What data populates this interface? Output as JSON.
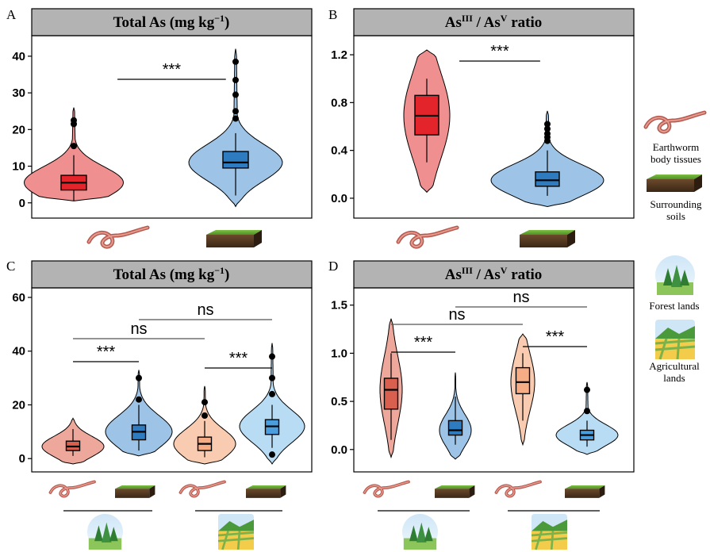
{
  "panel_labels": [
    "A",
    "B",
    "C",
    "D"
  ],
  "strips": {
    "A": {
      "main": "Total As (mg kg",
      "sup": "−1",
      "tail": ")"
    },
    "B": {
      "p1": "As",
      "s1": "III",
      "p2": " / As",
      "s2": "V",
      "p3": " ratio"
    },
    "C": {
      "main": "Total As (mg kg",
      "sup": "−1",
      "tail": ")"
    },
    "D": {
      "p1": "As",
      "s1": "III",
      "p2": " / As",
      "s2": "V",
      "p3": " ratio"
    }
  },
  "legend": {
    "earthworm": [
      "Earthworm",
      "body tissues"
    ],
    "soil": [
      "Surrounding",
      "soils"
    ],
    "forest": [
      "Forest lands"
    ],
    "agri": [
      "Agricultural",
      "lands"
    ]
  },
  "colors": {
    "earthworm_red": "#e3242b",
    "soil_blue": "#2f7bbf",
    "violin_red_fill": "#ef8f8f",
    "violin_blue_fill": "#9dc3e6",
    "box_salmon": "#d9604f",
    "box_peach": "#f6ad86",
    "box_blue2": "#4a9ede",
    "violin_salmon_fill": "#eda79b",
    "violin_peach_fill": "#f9cbb0",
    "violin_lightblue_fill": "#b8dcf4",
    "strip_bg": "#b3b3b3"
  },
  "chart_data": [
    {
      "panel": "A",
      "type": "violin",
      "title": "Total As (mg kg−1)",
      "ylim": [
        -2,
        43
      ],
      "yticks": [
        "0",
        "10",
        "20",
        "30",
        "40"
      ],
      "categories": [
        "Earthworm body tissues",
        "Surrounding soils"
      ],
      "groups": [
        {
          "q1": 3.5,
          "median": 5.5,
          "q3": 7.5,
          "whisker_low": 0.5,
          "whisker_high": 13,
          "outliers": [
            15.5,
            21.5,
            22.5
          ],
          "violin_range": [
            0.5,
            26
          ],
          "color": "red"
        },
        {
          "q1": 9.5,
          "median": 11,
          "q3": 14,
          "whisker_low": 2,
          "whisker_high": 19,
          "outliers": [
            23,
            25,
            29.5,
            33.5,
            38.5
          ],
          "violin_range": [
            -1,
            42
          ],
          "color": "blue"
        }
      ],
      "significance": [
        {
          "groups": [
            1,
            2
          ],
          "label": "***"
        }
      ]
    },
    {
      "panel": "B",
      "type": "violin",
      "title": "AsIII / AsV ratio",
      "ylim": [
        -0.1,
        1.28
      ],
      "yticks": [
        "0.0",
        "0.4",
        "0.8",
        "1.2"
      ],
      "categories": [
        "Earthworm body tissues",
        "Surrounding soils"
      ],
      "groups": [
        {
          "q1": 0.53,
          "median": 0.69,
          "q3": 0.86,
          "whisker_low": 0.3,
          "whisker_high": 1.0,
          "outliers": [],
          "violin_range": [
            0.05,
            1.24
          ],
          "color": "red"
        },
        {
          "q1": 0.1,
          "median": 0.15,
          "q3": 0.22,
          "whisker_low": 0.02,
          "whisker_high": 0.4,
          "outliers": [
            0.48,
            0.51,
            0.54,
            0.58,
            0.62
          ],
          "violin_range": [
            -0.07,
            0.73
          ],
          "color": "blue"
        }
      ],
      "significance": [
        {
          "groups": [
            1,
            2
          ],
          "label": "***"
        }
      ]
    },
    {
      "panel": "C",
      "type": "violin",
      "title": "Total As (mg kg−1)",
      "ylim": [
        -2,
        60
      ],
      "yticks": [
        "0",
        "20",
        "40",
        "60"
      ],
      "categories": [
        "Forest lands - Earthworm body tissues",
        "Forest lands - Surrounding soils",
        "Agricultural lands - Earthworm body tissues",
        "Agricultural lands - Surrounding soils"
      ],
      "groups": [
        {
          "q1": 3,
          "median": 4.5,
          "q3": 6.5,
          "whisker_low": 1,
          "whisker_high": 11,
          "outliers": [],
          "violin_range": [
            -2,
            15
          ],
          "color": "salmon"
        },
        {
          "q1": 7,
          "median": 10,
          "q3": 12.5,
          "whisker_low": 3,
          "whisker_high": 20,
          "outliers": [
            22,
            30
          ],
          "violin_range": [
            1,
            33
          ],
          "color": "blue"
        },
        {
          "q1": 3,
          "median": 5.5,
          "q3": 8,
          "whisker_low": 0.5,
          "whisker_high": 14,
          "outliers": [
            16,
            21
          ],
          "violin_range": [
            -2,
            27
          ],
          "color": "peach"
        },
        {
          "q1": 9,
          "median": 12,
          "q3": 14.5,
          "whisker_low": 4,
          "whisker_high": 20,
          "outliers": [
            1.5,
            24,
            30,
            38
          ],
          "violin_range": [
            -2,
            43
          ],
          "color": "lightblue"
        }
      ],
      "significance": [
        {
          "groups": [
            1,
            2
          ],
          "label": "***"
        },
        {
          "groups": [
            3,
            4
          ],
          "label": "***"
        },
        {
          "groups": [
            1,
            3
          ],
          "label": "ns"
        },
        {
          "groups": [
            2,
            4
          ],
          "label": "ns"
        }
      ]
    },
    {
      "panel": "D",
      "type": "violin",
      "title": "AsIII / AsV ratio",
      "ylim": [
        -0.15,
        1.58
      ],
      "yticks": [
        "0.0",
        "0.5",
        "1.0",
        "1.5"
      ],
      "categories": [
        "Forest lands - Earthworm body tissues",
        "Forest lands - Surrounding soils",
        "Agricultural lands - Earthworm body tissues",
        "Agricultural lands - Surrounding soils"
      ],
      "groups": [
        {
          "q1": 0.42,
          "median": 0.62,
          "q3": 0.74,
          "whisker_low": 0.1,
          "whisker_high": 1.0,
          "outliers": [],
          "violin_range": [
            -0.08,
            1.36
          ],
          "color": "salmon"
        },
        {
          "q1": 0.15,
          "median": 0.2,
          "q3": 0.3,
          "whisker_low": 0.05,
          "whisker_high": 0.55,
          "outliers": [],
          "violin_range": [
            -0.1,
            0.8
          ],
          "color": "blue"
        },
        {
          "q1": 0.58,
          "median": 0.7,
          "q3": 0.85,
          "whisker_low": 0.3,
          "whisker_high": 1.0,
          "outliers": [],
          "violin_range": [
            0.05,
            1.2
          ],
          "color": "peach"
        },
        {
          "q1": 0.1,
          "median": 0.15,
          "q3": 0.2,
          "whisker_low": 0.03,
          "whisker_high": 0.3,
          "outliers": [
            0.4,
            0.62
          ],
          "violin_range": [
            -0.05,
            0.7
          ],
          "color": "lightblue"
        }
      ],
      "significance": [
        {
          "groups": [
            1,
            2
          ],
          "label": "***"
        },
        {
          "groups": [
            3,
            4
          ],
          "label": "***"
        },
        {
          "groups": [
            1,
            3
          ],
          "label": "ns"
        },
        {
          "groups": [
            2,
            4
          ],
          "label": "ns"
        }
      ]
    }
  ]
}
